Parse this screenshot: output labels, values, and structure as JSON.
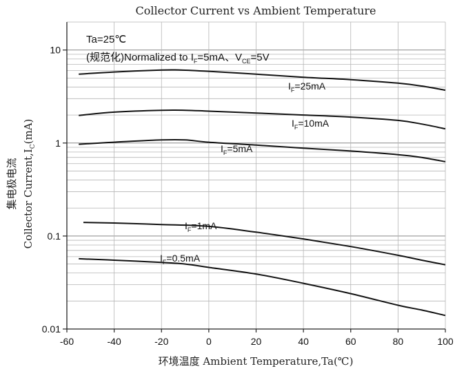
{
  "chart_data": {
    "type": "line",
    "title": "Collector Current vs Ambient Temperature",
    "xlabel": "环境温度 Ambient Temperature,Ta(℃)",
    "ylabel_cn": "集电极电流",
    "ylabel_en": "Collector Current,",
    "ylabel_symbol": "I",
    "ylabel_sub": "C",
    "ylabel_unit": "(mA)",
    "xlim": [
      -60,
      100
    ],
    "ylim": [
      0.01,
      20
    ],
    "yscale": "log",
    "grid": true,
    "xticks": [
      -60,
      -40,
      -20,
      0,
      20,
      40,
      60,
      80,
      100
    ],
    "xtick_labels": [
      "-60",
      "-40",
      "-20",
      "0",
      "20",
      "40",
      "60",
      "80",
      "100"
    ],
    "yticks": [
      0.01,
      0.1,
      1,
      10
    ],
    "ytick_labels": [
      "0.01",
      "0.1",
      "1",
      "10"
    ],
    "annotations": {
      "line1": "Ta=25℃",
      "line2_prefix": "(规范化)Normalized to I",
      "line2_sub1": "F",
      "line2_mid": "=5mA、V",
      "line2_sub2": "CE",
      "line2_suffix": "=5V"
    },
    "series": [
      {
        "label_main": "I",
        "label_sub": "F",
        "label_value": "=25mA",
        "points": [
          [
            -55,
            5.5
          ],
          [
            -40,
            5.8
          ],
          [
            -20,
            6.1
          ],
          [
            -12,
            6.1
          ],
          [
            0,
            5.9
          ],
          [
            20,
            5.5
          ],
          [
            40,
            5.1
          ],
          [
            60,
            4.8
          ],
          [
            80,
            4.4
          ],
          [
            90,
            4.1
          ],
          [
            100,
            3.7
          ]
        ]
      },
      {
        "label_main": "I",
        "label_sub": "F",
        "label_value": "=10mA",
        "points": [
          [
            -55,
            1.98
          ],
          [
            -40,
            2.15
          ],
          [
            -20,
            2.25
          ],
          [
            -10,
            2.25
          ],
          [
            0,
            2.2
          ],
          [
            20,
            2.1
          ],
          [
            40,
            2.0
          ],
          [
            60,
            1.9
          ],
          [
            80,
            1.75
          ],
          [
            90,
            1.6
          ],
          [
            100,
            1.42
          ]
        ]
      },
      {
        "label_main": "I",
        "label_sub": "F",
        "label_value": "=5mA",
        "points": [
          [
            -55,
            0.97
          ],
          [
            -40,
            1.02
          ],
          [
            -20,
            1.08
          ],
          [
            -10,
            1.08
          ],
          [
            0,
            1.02
          ],
          [
            20,
            0.95
          ],
          [
            40,
            0.88
          ],
          [
            60,
            0.82
          ],
          [
            80,
            0.75
          ],
          [
            90,
            0.7
          ],
          [
            100,
            0.63
          ]
        ]
      },
      {
        "label_main": "I",
        "label_sub": "F",
        "label_value": "=1mA",
        "points": [
          [
            -53,
            0.14
          ],
          [
            -40,
            0.138
          ],
          [
            -20,
            0.133
          ],
          [
            0,
            0.127
          ],
          [
            20,
            0.11
          ],
          [
            40,
            0.093
          ],
          [
            60,
            0.077
          ],
          [
            80,
            0.062
          ],
          [
            90,
            0.055
          ],
          [
            100,
            0.049
          ]
        ]
      },
      {
        "label_main": "I",
        "label_sub": "F",
        "label_value": "=0.5mA",
        "points": [
          [
            -55,
            0.057
          ],
          [
            -40,
            0.055
          ],
          [
            -20,
            0.052
          ],
          [
            -10,
            0.05
          ],
          [
            0,
            0.046
          ],
          [
            20,
            0.039
          ],
          [
            40,
            0.031
          ],
          [
            60,
            0.024
          ],
          [
            80,
            0.018
          ],
          [
            90,
            0.016
          ],
          [
            100,
            0.014
          ]
        ]
      }
    ]
  }
}
